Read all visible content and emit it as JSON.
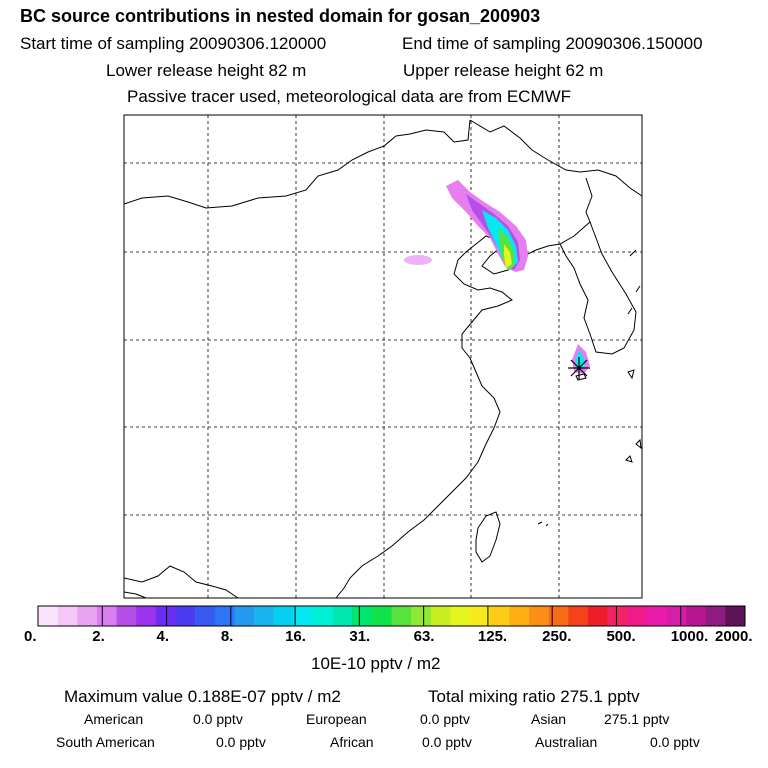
{
  "header": {
    "title": "BC  source contributions in nested domain for gosan_200903",
    "start_label": "Start time of sampling 20090306.120000",
    "end_label": "End time of sampling 20090306.150000",
    "lower_release": "Lower release height   82 m",
    "upper_release": "Upper release height   62 m",
    "note": "Passive tracer used, meteorological data are from ECMWF"
  },
  "colorbar": {
    "ticks": [
      "0.",
      "2.",
      "4.",
      "8.",
      "16.",
      "31.",
      "63.",
      "125.",
      "250.",
      "500.",
      "1000.",
      "2000."
    ],
    "unit_label": "10E-10 pptv / m2",
    "colors": [
      "#fbe4fb",
      "#f6c6f6",
      "#eaa2f2",
      "#d97ff0",
      "#b64ee8",
      "#9b33f0",
      "#6c2ff2",
      "#4a3cf0",
      "#3859f2",
      "#2e75f5",
      "#239aef",
      "#18b4f0",
      "#06d0f2",
      "#05e8f0",
      "#00f0d6",
      "#00e7b2",
      "#00e56b",
      "#10e34a",
      "#57e23e",
      "#8fe833",
      "#c9ef22",
      "#e6f51e",
      "#f6e91e",
      "#fecc16",
      "#fdaf14",
      "#fc8f18",
      "#f96c16",
      "#f4421a",
      "#ef1d2a",
      "#f02565",
      "#f01a8a",
      "#ea1cab",
      "#d51ea9",
      "#b8158f",
      "#901a80",
      "#5c1456"
    ]
  },
  "stats": {
    "max_value": "Maximum value  0.188E-07 pptv / m2",
    "total": "Total mixing ratio     275.1 pptv",
    "regions": [
      {
        "name": "American",
        "value": "0.0 pptv"
      },
      {
        "name": "European",
        "value": "0.0 pptv"
      },
      {
        "name": "Asian",
        "value": "275.1 pptv"
      },
      {
        "name": "South American",
        "value": "0.0 pptv"
      },
      {
        "name": "African",
        "value": "0.0 pptv"
      },
      {
        "name": "Australian",
        "value": "0.0 pptv"
      }
    ]
  },
  "map": {
    "receptor": "gosan",
    "plume_colors": {
      "outer": "#e67ef0",
      "mid": "#b64ee8",
      "cyan": "#05e8f0",
      "green": "#57e23e",
      "yellow": "#e6f51e"
    }
  }
}
